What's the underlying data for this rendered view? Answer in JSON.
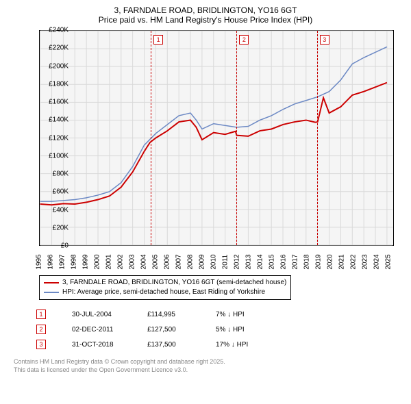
{
  "title": {
    "line1": "3, FARNDALE ROAD, BRIDLINGTON, YO16 6GT",
    "line2": "Price paid vs. HM Land Registry's House Price Index (HPI)"
  },
  "chart": {
    "type": "line",
    "background_color": "#f5f5f5",
    "grid_color": "#d9d9d9",
    "border_color": "#000000",
    "xlim": [
      1995,
      2025.5
    ],
    "ylim": [
      0,
      240000
    ],
    "xtick_step": 1,
    "ytick_step": 20000,
    "ytick_labels": [
      "£0",
      "£20K",
      "£40K",
      "£60K",
      "£80K",
      "£100K",
      "£120K",
      "£140K",
      "£160K",
      "£180K",
      "£200K",
      "£220K",
      "£240K"
    ],
    "xtick_labels": [
      "1995",
      "1996",
      "1997",
      "1998",
      "1999",
      "2000",
      "2001",
      "2002",
      "2003",
      "2004",
      "2005",
      "2006",
      "2007",
      "2008",
      "2009",
      "2010",
      "2011",
      "2012",
      "2013",
      "2014",
      "2015",
      "2016",
      "2017",
      "2018",
      "2019",
      "2020",
      "2021",
      "2022",
      "2023",
      "2024",
      "2025"
    ],
    "label_fontsize": 10,
    "series": [
      {
        "name": "price_paid",
        "label": "3, FARNDALE ROAD, BRIDLINGTON, YO16 6GT (semi-detached house)",
        "color": "#cc0000",
        "line_width": 2,
        "data": [
          [
            1995,
            46000
          ],
          [
            1996,
            45000
          ],
          [
            1997,
            46500
          ],
          [
            1998,
            46000
          ],
          [
            1999,
            48000
          ],
          [
            2000,
            51000
          ],
          [
            2001,
            55000
          ],
          [
            2002,
            65000
          ],
          [
            2003,
            82000
          ],
          [
            2004,
            105000
          ],
          [
            2004.5,
            114995
          ],
          [
            2005,
            120000
          ],
          [
            2006,
            128000
          ],
          [
            2007,
            138000
          ],
          [
            2008,
            140000
          ],
          [
            2008.5,
            132000
          ],
          [
            2009,
            118000
          ],
          [
            2010,
            126000
          ],
          [
            2011,
            124000
          ],
          [
            2011.9,
            127500
          ],
          [
            2012,
            123000
          ],
          [
            2013,
            122000
          ],
          [
            2014,
            128000
          ],
          [
            2015,
            130000
          ],
          [
            2016,
            135000
          ],
          [
            2017,
            138000
          ],
          [
            2018,
            140000
          ],
          [
            2018.8,
            137500
          ],
          [
            2019,
            138000
          ],
          [
            2019.5,
            165000
          ],
          [
            2020,
            148000
          ],
          [
            2021,
            155000
          ],
          [
            2022,
            168000
          ],
          [
            2023,
            172000
          ],
          [
            2024,
            177000
          ],
          [
            2025,
            182000
          ]
        ]
      },
      {
        "name": "hpi",
        "label": "HPI: Average price, semi-detached house, East Riding of Yorkshire",
        "color": "#6b88c4",
        "line_width": 1.5,
        "data": [
          [
            1995,
            49000
          ],
          [
            1996,
            49000
          ],
          [
            1997,
            50000
          ],
          [
            1998,
            51000
          ],
          [
            1999,
            53000
          ],
          [
            2000,
            56000
          ],
          [
            2001,
            60000
          ],
          [
            2002,
            70000
          ],
          [
            2003,
            88000
          ],
          [
            2004,
            112000
          ],
          [
            2005,
            125000
          ],
          [
            2006,
            135000
          ],
          [
            2007,
            145000
          ],
          [
            2008,
            148000
          ],
          [
            2008.5,
            140000
          ],
          [
            2009,
            130000
          ],
          [
            2010,
            136000
          ],
          [
            2011,
            134000
          ],
          [
            2012,
            132000
          ],
          [
            2013,
            133000
          ],
          [
            2014,
            140000
          ],
          [
            2015,
            145000
          ],
          [
            2016,
            152000
          ],
          [
            2017,
            158000
          ],
          [
            2018,
            162000
          ],
          [
            2019,
            166000
          ],
          [
            2020,
            172000
          ],
          [
            2021,
            185000
          ],
          [
            2022,
            203000
          ],
          [
            2023,
            210000
          ],
          [
            2024,
            216000
          ],
          [
            2025,
            222000
          ]
        ]
      }
    ],
    "markers": [
      {
        "id": "1",
        "x": 2004.55
      },
      {
        "id": "2",
        "x": 2011.92
      },
      {
        "id": "3",
        "x": 2018.83
      }
    ]
  },
  "legend": {
    "border_color": "#000000",
    "items": [
      {
        "color": "#cc0000",
        "label": "3, FARNDALE ROAD, BRIDLINGTON, YO16 6GT (semi-detached house)"
      },
      {
        "color": "#6b88c4",
        "label": "HPI: Average price, semi-detached house, East Riding of Yorkshire"
      }
    ]
  },
  "sales": [
    {
      "marker": "1",
      "date": "30-JUL-2004",
      "price": "£114,995",
      "diff": "7% ↓ HPI"
    },
    {
      "marker": "2",
      "date": "02-DEC-2011",
      "price": "£127,500",
      "diff": "5% ↓ HPI"
    },
    {
      "marker": "3",
      "date": "31-OCT-2018",
      "price": "£137,500",
      "diff": "17% ↓ HPI"
    }
  ],
  "footer": {
    "line1": "Contains HM Land Registry data © Crown copyright and database right 2025.",
    "line2": "This data is licensed under the Open Government Licence v3.0."
  }
}
